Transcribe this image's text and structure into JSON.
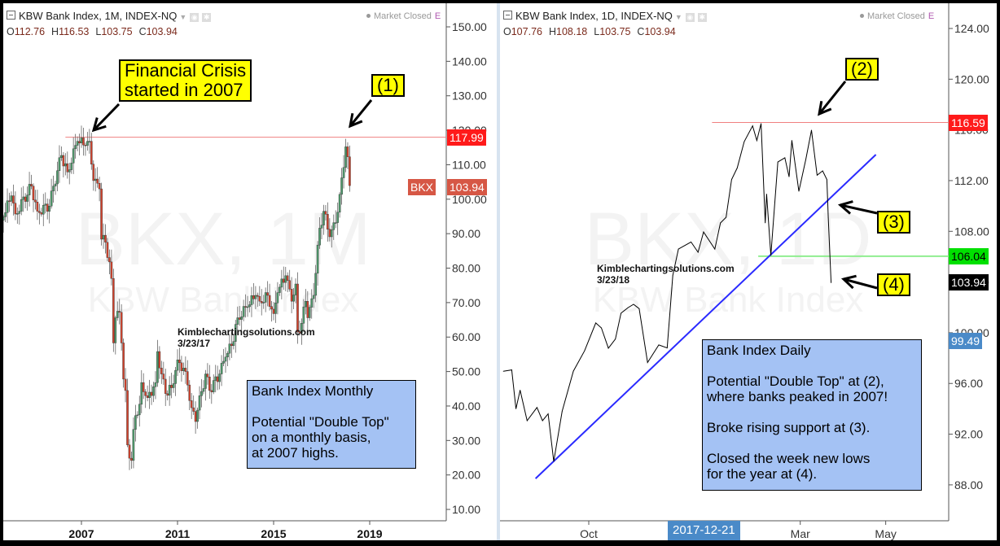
{
  "left_panel": {
    "title": "KBW Bank Index, 1M, INDEX-NQ",
    "ohlc": {
      "o_label": "O",
      "o": "112.76",
      "h_label": "H",
      "h": "116.53",
      "l_label": "L",
      "l": "103.75",
      "c_label": "C",
      "c": "103.94"
    },
    "market_status": "Market Closed",
    "status_letter": "E",
    "watermark": {
      "symbol": "BKX, 1M",
      "name": "KBW Bank Index"
    },
    "callout_crisis": "Financial Crisis\nstarted in 2007",
    "callout_1": "(1)",
    "source": "Kimblechartingsolutions.com",
    "source_date": "3/23/17",
    "note": "Bank Index Monthly\n\nPotential \"Double Top\"\non a monthly basis,\nat 2007 highs.",
    "tags": {
      "resistance": "117.99",
      "symbol": "BKX",
      "last": "103.94"
    }
  },
  "right_panel": {
    "title": "KBW Bank Index, 1D, INDEX-NQ",
    "ohlc": {
      "o_label": "O",
      "o": "107.76",
      "h_label": "H",
      "h": "108.18",
      "l_label": "L",
      "l": "103.75",
      "c_label": "C",
      "c": "103.94"
    },
    "market_status": "Market Closed",
    "status_letter": "E",
    "watermark": {
      "symbol": "BKX, 1D",
      "name": "KBW Bank Index"
    },
    "callout_2": "(2)",
    "callout_3": "(3)",
    "callout_4": "(4)",
    "source": "Kimblechartingsolutions.com",
    "source_date": "3/23/18",
    "note": "Bank Index Daily\n\nPotential \"Double Top\" at (2),\nwhere banks peaked in 2007!\n\nBroke rising support at (3).\n\nClosed the week new lows\nfor the year at (4).",
    "tags": {
      "resistance": "116.59",
      "support": "106.04",
      "last": "103.94",
      "indicator": "99.49"
    },
    "crosshair_date": "2017-12-21"
  },
  "chart_data": [
    {
      "type": "candlestick",
      "title": "KBW Bank Index, 1M, INDEX-NQ",
      "interval": "monthly",
      "ylim": [
        10,
        150
      ],
      "y_ticks": [
        "150.00",
        "140.00",
        "130.00",
        "120.00",
        "110.00",
        "100.00",
        "90.00",
        "80.00",
        "70.00",
        "60.00",
        "50.00",
        "40.00",
        "30.00",
        "20.00",
        "10.00"
      ],
      "x_ticks": [
        "2007",
        "2011",
        "2015",
        "2019"
      ],
      "grid": false,
      "colors": {
        "up": "#4f9a6c",
        "down": "#d2432d",
        "resistance": "#f08080",
        "tag_red": "#ff1a1a",
        "tag_symbol": "#d65745"
      },
      "close_path": [
        [
          "2003-10",
          94.9
        ],
        [
          "2004-02",
          101
        ],
        [
          "2004-04",
          95.7
        ],
        [
          "2004-12",
          103.8
        ],
        [
          "2005-03",
          96.5
        ],
        [
          "2005-09",
          98
        ],
        [
          "2005-11",
          103.8
        ],
        [
          "2006-03",
          112.7
        ],
        [
          "2006-06",
          107.9
        ],
        [
          "2006-11",
          116.8
        ],
        [
          "2007-03",
          115.6
        ],
        [
          "2007-05",
          116.8
        ],
        [
          "2007-07",
          105.4
        ],
        [
          "2007-10",
          103
        ],
        [
          "2007-11",
          88.4
        ],
        [
          "2008-01",
          87.5
        ],
        [
          "2008-03",
          81.8
        ],
        [
          "2008-04",
          77
        ],
        [
          "2008-05",
          58.3
        ],
        [
          "2008-06",
          65.6
        ],
        [
          "2008-08",
          67.2
        ],
        [
          "2008-09",
          58.3
        ],
        [
          "2008-10",
          47.8
        ],
        [
          "2008-11",
          44.5
        ],
        [
          "2008-12",
          28.7
        ],
        [
          "2009-02",
          24.2
        ],
        [
          "2009-03",
          33.2
        ],
        [
          "2009-04",
          37.2
        ],
        [
          "2009-06",
          40.5
        ],
        [
          "2009-07",
          46.8
        ],
        [
          "2009-10",
          42.4
        ],
        [
          "2010-02",
          46.8
        ],
        [
          "2010-03",
          55.8
        ],
        [
          "2010-05",
          49.3
        ],
        [
          "2010-07",
          43.6
        ],
        [
          "2010-10",
          45.3
        ],
        [
          "2011-01",
          53.4
        ],
        [
          "2011-04",
          51
        ],
        [
          "2011-06",
          46.1
        ],
        [
          "2011-08",
          39.5
        ],
        [
          "2011-10",
          35.5
        ],
        [
          "2011-11",
          38.8
        ],
        [
          "2012-03",
          49.3
        ],
        [
          "2012-05",
          44.5
        ],
        [
          "2012-10",
          49.3
        ],
        [
          "2013-01",
          54.2
        ],
        [
          "2013-04",
          57.5
        ],
        [
          "2013-07",
          65.6
        ],
        [
          "2013-12",
          68.8
        ],
        [
          "2014-04",
          72.1
        ],
        [
          "2014-06",
          70.4
        ],
        [
          "2014-10",
          72.1
        ],
        [
          "2015-01",
          66.8
        ],
        [
          "2015-03",
          72.9
        ],
        [
          "2015-07",
          77.8
        ],
        [
          "2015-10",
          70.4
        ],
        [
          "2015-12",
          75.4
        ],
        [
          "2016-01",
          61.5
        ],
        [
          "2016-03",
          64
        ],
        [
          "2016-05",
          70.4
        ],
        [
          "2016-06",
          65.6
        ],
        [
          "2016-09",
          72.1
        ],
        [
          "2016-11",
          86.7
        ],
        [
          "2016-12",
          91.6
        ],
        [
          "2017-02",
          96.5
        ],
        [
          "2017-05",
          89.1
        ],
        [
          "2017-08",
          93.2
        ],
        [
          "2017-10",
          101.4
        ],
        [
          "2017-11",
          106.2
        ],
        [
          "2018-01",
          115.2
        ],
        [
          "2018-02",
          112.3
        ],
        [
          "2018-03",
          103.94
        ]
      ],
      "resistance_line": {
        "value": 117.99,
        "from": "2006-05"
      }
    },
    {
      "type": "line",
      "title": "KBW Bank Index, 1D, INDEX-NQ",
      "interval": "daily",
      "ylim": [
        85,
        126
      ],
      "y_ticks": [
        "124.00",
        "120.00",
        "116.00",
        "112.00",
        "108.00",
        "104.00",
        "100.00",
        "96.00",
        "92.00",
        "88.00"
      ],
      "x_ticks": [
        "Oct",
        "Mar",
        "May"
      ],
      "x_tick_dates": [
        "2017-10-01",
        "2018-03-01",
        "2018-05-01"
      ],
      "grid": false,
      "colors": {
        "line": "#000000",
        "trendline": "#2a2aff",
        "resistance": "#f08080",
        "support": "#90ee90",
        "tag_red": "#ff1a1a",
        "tag_green": "#00e000",
        "tag_last": "#000000",
        "tag_indicator": "#4a8ac8"
      },
      "points": [
        [
          "2017-08-01",
          96.96
        ],
        [
          "2017-08-07",
          97.07
        ],
        [
          "2017-08-10",
          94.0
        ],
        [
          "2017-08-13",
          95.47
        ],
        [
          "2017-08-18",
          93.06
        ],
        [
          "2017-08-25",
          94.1
        ],
        [
          "2017-08-29",
          93.06
        ],
        [
          "2017-09-02",
          93.6
        ],
        [
          "2017-09-06",
          89.85
        ],
        [
          "2017-09-12",
          93.8
        ],
        [
          "2017-09-20",
          96.97
        ],
        [
          "2017-09-28",
          98.57
        ],
        [
          "2017-10-06",
          100.77
        ],
        [
          "2017-10-10",
          100.38
        ],
        [
          "2017-10-15",
          98.78
        ],
        [
          "2017-10-20",
          99.5
        ],
        [
          "2017-10-24",
          101.54
        ],
        [
          "2017-10-29",
          101.98
        ],
        [
          "2017-11-02",
          102.24
        ],
        [
          "2017-11-06",
          101.9
        ],
        [
          "2017-11-12",
          97.65
        ],
        [
          "2017-11-20",
          99.04
        ],
        [
          "2017-11-26",
          98.8
        ],
        [
          "2017-11-30",
          104.52
        ],
        [
          "2017-12-04",
          106.6
        ],
        [
          "2017-12-13",
          107.16
        ],
        [
          "2017-12-18",
          106.35
        ],
        [
          "2017-12-22",
          107.95
        ],
        [
          "2017-12-30",
          106.6
        ],
        [
          "2018-01-03",
          108.66
        ],
        [
          "2018-01-07",
          109.1
        ],
        [
          "2018-01-11",
          112.09
        ],
        [
          "2018-01-15",
          113.0
        ],
        [
          "2018-01-20",
          115.08
        ],
        [
          "2018-01-26",
          116.32
        ],
        [
          "2018-01-29",
          115.17
        ],
        [
          "2018-02-01",
          116.5
        ],
        [
          "2018-02-04",
          108.66
        ],
        [
          "2018-02-05",
          110.94
        ],
        [
          "2018-02-08",
          106.1
        ],
        [
          "2018-02-13",
          113.47
        ],
        [
          "2018-02-18",
          113.8
        ],
        [
          "2018-02-21",
          112.3
        ],
        [
          "2018-02-23",
          115.17
        ],
        [
          "2018-02-28",
          111.16
        ],
        [
          "2018-03-05",
          113.69
        ],
        [
          "2018-03-09",
          115.98
        ],
        [
          "2018-03-13",
          112.43
        ],
        [
          "2018-03-17",
          112.77
        ],
        [
          "2018-03-20",
          112.09
        ],
        [
          "2018-03-21",
          109.1
        ],
        [
          "2018-03-23",
          103.94
        ]
      ],
      "trendline": [
        [
          "2017-08-24",
          88.5
        ],
        [
          "2018-04-24",
          114.05
        ]
      ],
      "resistance_line": {
        "value": 116.59,
        "from": "2017-12-28"
      },
      "support_line": {
        "value": 106.04,
        "from": "2018-01-30"
      }
    }
  ]
}
